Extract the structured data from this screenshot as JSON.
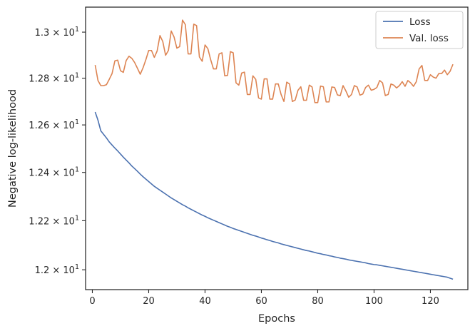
{
  "chart_data": {
    "type": "line",
    "title": "",
    "xlabel": "Epochs",
    "ylabel": "Negative log-likelihood",
    "y_scale": "log",
    "xlim": [
      -2.4,
      133.3
    ],
    "ylim": [
      11.92,
      13.11
    ],
    "grid": false,
    "legend_position": "top-right",
    "x_ticks": [
      0,
      20,
      40,
      60,
      80,
      100,
      120
    ],
    "x_tick_labels": [
      "0",
      "20",
      "40",
      "60",
      "80",
      "100",
      "120"
    ],
    "y_ticks": [
      12.0,
      12.2,
      12.4,
      12.6,
      12.8,
      13.0
    ],
    "y_tick_labels": [
      {
        "mantissa": "1.2",
        "exp": "1"
      },
      {
        "mantissa": "1.22",
        "exp": "1"
      },
      {
        "mantissa": "1.24",
        "exp": "1"
      },
      {
        "mantissa": "1.26",
        "exp": "1"
      },
      {
        "mantissa": "1.28",
        "exp": "1"
      },
      {
        "mantissa": "1.3",
        "exp": "1"
      }
    ],
    "x_start": 1,
    "x_step": 1,
    "series": [
      {
        "name": "Loss",
        "color": "#4c72b0",
        "values": [
          12.655,
          12.62,
          12.575,
          12.56,
          12.545,
          12.528,
          12.515,
          12.502,
          12.49,
          12.477,
          12.464,
          12.452,
          12.44,
          12.427,
          12.416,
          12.405,
          12.393,
          12.382,
          12.372,
          12.362,
          12.352,
          12.342,
          12.334,
          12.326,
          12.318,
          12.31,
          12.302,
          12.294,
          12.287,
          12.28,
          12.273,
          12.266,
          12.26,
          12.253,
          12.247,
          12.241,
          12.235,
          12.229,
          12.223,
          12.218,
          12.212,
          12.207,
          12.202,
          12.197,
          12.192,
          12.187,
          12.182,
          12.177,
          12.173,
          12.168,
          12.164,
          12.16,
          12.156,
          12.152,
          12.148,
          12.144,
          12.14,
          12.137,
          12.133,
          12.129,
          12.126,
          12.122,
          12.119,
          12.115,
          12.112,
          12.109,
          12.105,
          12.102,
          12.099,
          12.096,
          12.093,
          12.09,
          12.087,
          12.084,
          12.081,
          12.078,
          12.076,
          12.073,
          12.07,
          12.067,
          12.065,
          12.062,
          12.06,
          12.057,
          12.055,
          12.052,
          12.05,
          12.047,
          12.045,
          12.043,
          12.04,
          12.038,
          12.036,
          12.034,
          12.032,
          12.03,
          12.028,
          12.025,
          12.023,
          12.021,
          12.02,
          12.018,
          12.016,
          12.014,
          12.012,
          12.01,
          12.008,
          12.006,
          12.004,
          12.002,
          12.0,
          11.998,
          11.996,
          11.994,
          11.992,
          11.99,
          11.988,
          11.986,
          11.984,
          11.982,
          11.98,
          11.978,
          11.976,
          11.974,
          11.972,
          11.97,
          11.966,
          11.962
        ]
      },
      {
        "name": "Val. loss",
        "color": "#dd8452",
        "values": [
          12.857,
          12.79,
          12.768,
          12.768,
          12.772,
          12.795,
          12.82,
          12.875,
          12.878,
          12.832,
          12.825,
          12.876,
          12.895,
          12.886,
          12.868,
          12.843,
          12.817,
          12.845,
          12.88,
          12.92,
          12.92,
          12.89,
          12.918,
          12.985,
          12.959,
          12.899,
          12.92,
          13.005,
          12.979,
          12.93,
          12.937,
          13.053,
          13.033,
          12.905,
          12.905,
          13.035,
          13.029,
          12.892,
          12.873,
          12.944,
          12.928,
          12.88,
          12.84,
          12.84,
          12.905,
          12.91,
          12.81,
          12.812,
          12.915,
          12.91,
          12.78,
          12.77,
          12.822,
          12.826,
          12.73,
          12.73,
          12.81,
          12.795,
          12.715,
          12.71,
          12.797,
          12.797,
          12.71,
          12.71,
          12.775,
          12.775,
          12.73,
          12.7,
          12.783,
          12.775,
          12.7,
          12.706,
          12.748,
          12.763,
          12.705,
          12.705,
          12.77,
          12.762,
          12.695,
          12.695,
          12.766,
          12.763,
          12.698,
          12.698,
          12.762,
          12.76,
          12.728,
          12.725,
          12.768,
          12.745,
          12.718,
          12.73,
          12.768,
          12.762,
          12.727,
          12.732,
          12.76,
          12.77,
          12.748,
          12.752,
          12.76,
          12.79,
          12.78,
          12.725,
          12.73,
          12.775,
          12.77,
          12.758,
          12.768,
          12.785,
          12.765,
          12.79,
          12.78,
          12.765,
          12.785,
          12.84,
          12.855,
          12.79,
          12.79,
          12.815,
          12.805,
          12.8,
          12.82,
          12.82,
          12.835,
          12.815,
          12.83,
          12.86
        ]
      }
    ]
  }
}
